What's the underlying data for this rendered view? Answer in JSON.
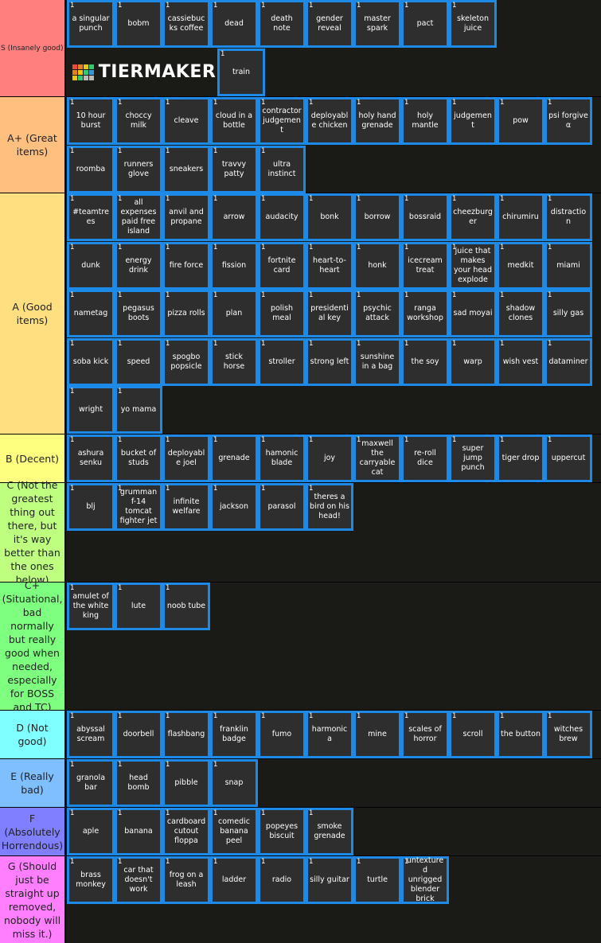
{
  "logo": "TIERMAKER",
  "badge": "1",
  "tiers": [
    {
      "label": "S (Insanely good)",
      "color": "#ff7f7f",
      "items": [
        "a singular punch",
        "bobm",
        "cassiebucks coffee",
        "dead",
        "death note",
        "gender reveal",
        "master spark",
        "pact",
        "skeleton juice",
        "train"
      ]
    },
    {
      "label": "A+ (Great items)",
      "color": "#ffbf7f",
      "items": [
        "10 hour burst",
        "choccy milk",
        "cleave",
        "cloud in a bottle",
        "contractor judgement",
        "deployable chicken",
        "holy hand grenade",
        "holy mantle",
        "judgement",
        "pow",
        "psi forgive α",
        "roomba",
        "runners glove",
        "sneakers",
        "travvy patty",
        "ultra instinct"
      ]
    },
    {
      "label": "A (Good items)",
      "color": "#ffdf7f",
      "items": [
        "#teamtrees",
        "all expenses paid free island",
        "anvil and propane",
        "arrow",
        "audacity",
        "bonk",
        "borrow",
        "bossraid",
        "cheezburger",
        "chirumiru",
        "distraction",
        "dunk",
        "energy drink",
        "fire force",
        "fission",
        "fortnite card",
        "heart-to-heart",
        "honk",
        "icecream treat",
        "juice that makes your head explode",
        "medkit",
        "miami",
        "nametag",
        "pegasus boots",
        "pizza rolls",
        "plan",
        "polish meal",
        "presidential key",
        "psychic attack",
        "ranga workshop",
        "sad moyai",
        "shadow clones",
        "silly gas",
        "soba kick",
        "speed",
        "spogbo popsicle",
        "stick horse",
        "stroller",
        "strong left",
        "sunshine in a bag",
        "the soy",
        "warp",
        "wish vest",
        "dataminer",
        "wright",
        "yo mama"
      ]
    },
    {
      "label": "B (Decent)",
      "color": "#ffff7f",
      "items": [
        "ashura senku",
        "bucket of studs",
        "deployable joel",
        "grenade",
        "hamonic blade",
        "joy",
        "maxwell the carryable cat",
        "re-roll dice",
        "super jump punch",
        "tiger drop",
        "uppercut"
      ]
    },
    {
      "label": "C (Not the greatest thing out there, but it's way better than the ones below)",
      "color": "#bfff7f",
      "items": [
        "blj",
        "grumman f-14 tomcat fighter jet",
        "infinite welfare",
        "jackson",
        "parasol",
        "theres a bird on his head!"
      ]
    },
    {
      "label": "C+ (Situational, bad normally but really good when needed, especially for BOSS and TC)",
      "color": "#7fff7f",
      "items": [
        "amulet of the white king",
        "lute",
        "noob tube"
      ]
    },
    {
      "label": "D (Not good)",
      "color": "#7fffff",
      "items": [
        "abyssal scream",
        "doorbell",
        "flashbang",
        "franklin badge",
        "fumo",
        "harmonica",
        "mine",
        "scales of horror",
        "scroll",
        "the button",
        "witches brew"
      ]
    },
    {
      "label": "E (Really bad)",
      "color": "#7fbfff",
      "items": [
        "granola bar",
        "head bomb",
        "pibble",
        "snap"
      ]
    },
    {
      "label": "F (Absolutely Horrendous)",
      "color": "#7f7fff",
      "items": [
        "aple",
        "banana",
        "cardboard cutout floppa",
        "comedic banana peel",
        "popeyes biscuit",
        "smoke grenade"
      ]
    },
    {
      "label": "G (Should just be straight up removed, nobody will miss it.)",
      "color": "#ff7fff",
      "items": [
        "brass monkey",
        "car that doesn't work",
        "frog on a leash",
        "ladder",
        "radio",
        "silly guitar",
        "turtle",
        "untextured unrigged blender brick"
      ]
    }
  ]
}
